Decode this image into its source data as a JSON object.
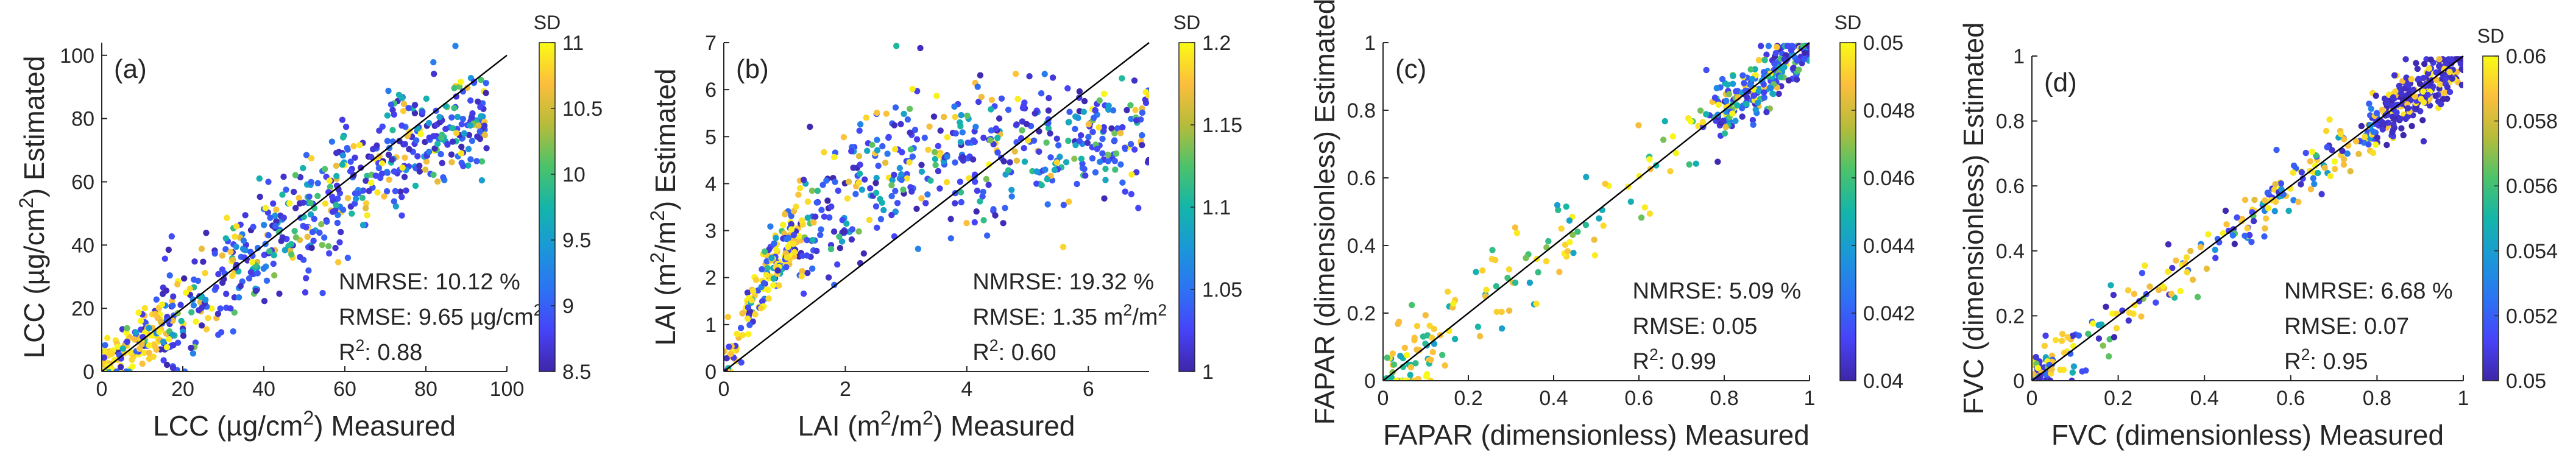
{
  "chart_data": [
    {
      "type": "scatter",
      "panel_label": "(a)",
      "xlabel_parts": [
        "LCC (µg/cm",
        "2",
        ") Measured"
      ],
      "ylabel_parts": [
        "LCC (µg/cm",
        "2",
        ") Estimated"
      ],
      "xlim": [
        0,
        100
      ],
      "ylim": [
        0,
        104
      ],
      "xticks": [
        0,
        20,
        40,
        60,
        80,
        100
      ],
      "yticks": [
        0,
        20,
        40,
        60,
        80,
        100
      ],
      "tick_labels_x": [
        "0",
        "20",
        "40",
        "60",
        "80",
        "100"
      ],
      "tick_labels_y": [
        "0",
        "20",
        "40",
        "60",
        "80",
        "100"
      ],
      "reference_line": "1:1",
      "stats": {
        "nmrse": "NMRSE: 10.12 %",
        "rmse_parts": [
          "RMSE: 9.65 µg/cm",
          "2",
          ""
        ],
        "r2_parts": [
          "R",
          "2",
          ": 0.88"
        ]
      },
      "colorbar": {
        "title": "SD",
        "range": [
          8.5,
          11
        ],
        "ticks": [
          8.5,
          9,
          9.5,
          10,
          10.5,
          11
        ],
        "tick_labels": [
          "8.5",
          "9",
          "9.5",
          "10",
          "10.5",
          "11"
        ]
      },
      "points": {
        "count": 700,
        "x_range": [
          0,
          95
        ],
        "y_trend": "approximately y = x, saturating near 80 at high x",
        "spread_sd": 9.6,
        "color_variable": "SD"
      }
    },
    {
      "type": "scatter",
      "panel_label": "(b)",
      "xlabel_parts": [
        "LAI (m",
        "2",
        "/m",
        "2",
        ") Measured"
      ],
      "ylabel_parts": [
        "LAI (m",
        "2",
        "/m",
        "2",
        ") Estimated"
      ],
      "xlim": [
        0,
        7
      ],
      "ylim": [
        0,
        7
      ],
      "xticks": [
        0,
        2,
        4,
        6
      ],
      "yticks": [
        0,
        1,
        2,
        3,
        4,
        5,
        6,
        7
      ],
      "tick_labels_x": [
        "0",
        "2",
        "4",
        "6"
      ],
      "tick_labels_y": [
        "0",
        "1",
        "2",
        "3",
        "4",
        "5",
        "6",
        "7"
      ],
      "reference_line": "1:1",
      "stats": {
        "nmrse": "NMRSE: 19.32 %",
        "rmse_parts": [
          "RMSE: 1.35 m",
          "2",
          "/m",
          "2",
          ""
        ],
        "r2_parts": [
          "R",
          "2",
          ": 0.60"
        ]
      },
      "colorbar": {
        "title": "SD",
        "range": [
          1,
          1.2
        ],
        "ticks": [
          1,
          1.05,
          1.1,
          1.15,
          1.2
        ],
        "tick_labels": [
          "1",
          "1.05",
          "1.1",
          "1.15",
          "1.2"
        ]
      },
      "points": {
        "count": 650,
        "x_range": [
          0,
          7
        ],
        "y_trend": "rises steeply to ~4.5 by x=3, then plateaus near 4.5-5",
        "spread_sd": 0.9,
        "color_variable": "SD"
      }
    },
    {
      "type": "scatter",
      "panel_label": "(c)",
      "xlabel_parts": [
        "FAPAR (dimensionless) Measured"
      ],
      "ylabel_parts": [
        "FAPAR (dimensionless) Estimated"
      ],
      "xlim": [
        0,
        1
      ],
      "ylim": [
        0,
        1
      ],
      "xticks": [
        0,
        0.2,
        0.4,
        0.6,
        0.8,
        1
      ],
      "yticks": [
        0,
        0.2,
        0.4,
        0.6,
        0.8,
        1
      ],
      "tick_labels_x": [
        "0",
        "0.2",
        "0.4",
        "0.6",
        "0.8",
        "1"
      ],
      "tick_labels_y": [
        "0",
        "0.2",
        "0.4",
        "0.6",
        "0.8",
        "1"
      ],
      "reference_line": "1:1",
      "stats": {
        "nmrse": "NMRSE: 5.09 %",
        "rmse_parts": [
          "RMSE: 0.05"
        ],
        "r2_parts": [
          "R",
          "2",
          ": 0.99"
        ]
      },
      "colorbar": {
        "title": "SD",
        "range": [
          0.04,
          0.05
        ],
        "ticks": [
          0.04,
          0.042,
          0.044,
          0.046,
          0.048,
          0.05
        ],
        "tick_labels": [
          "0.04",
          "0.042",
          "0.044",
          "0.046",
          "0.048",
          "0.05"
        ]
      },
      "points": {
        "count": 380,
        "x_range": [
          0,
          1
        ],
        "y_trend": "tight along y = x, dense cluster at 0.8-1.0",
        "spread_sd": 0.05,
        "color_variable": "SD"
      }
    },
    {
      "type": "scatter",
      "panel_label": "(d)",
      "xlabel_parts": [
        "FVC (dimensionless) Measured"
      ],
      "ylabel_parts": [
        "FVC (dimensionless) Estimated"
      ],
      "xlim": [
        0,
        1
      ],
      "ylim": [
        0,
        1
      ],
      "xticks": [
        0,
        0.2,
        0.4,
        0.6,
        0.8,
        1
      ],
      "yticks": [
        0,
        0.2,
        0.4,
        0.6,
        0.8,
        1
      ],
      "tick_labels_x": [
        "0",
        "0.2",
        "0.4",
        "0.6",
        "0.8",
        "1"
      ],
      "tick_labels_y": [
        "0",
        "0.2",
        "0.4",
        "0.6",
        "0.8",
        "1"
      ],
      "reference_line": "1:1",
      "stats": {
        "nmrse": "NMRSE: 6.68 %",
        "rmse_parts": [
          "RMSE: 0.07"
        ],
        "r2_parts": [
          "R",
          "2",
          ": 0.95"
        ]
      },
      "colorbar": {
        "title": "SD",
        "range": [
          0.05,
          0.06
        ],
        "ticks": [
          0.05,
          0.052,
          0.054,
          0.056,
          0.058,
          0.06
        ],
        "tick_labels": [
          "0.05",
          "0.052",
          "0.054",
          "0.056",
          "0.058",
          "0.06"
        ]
      },
      "points": {
        "count": 520,
        "x_range": [
          0,
          1
        ],
        "y_trend": "along y = x, dense cluster at 0.8-1.0, small cluster near 0",
        "spread_sd": 0.06,
        "color_variable": "SD"
      }
    }
  ],
  "colormap": [
    "#3e26a8",
    "#4743f8",
    "#2c73f4",
    "#1a98d8",
    "#14b5a9",
    "#4cc36a",
    "#b6bc3a",
    "#fcbe3d",
    "#f9fb15"
  ]
}
